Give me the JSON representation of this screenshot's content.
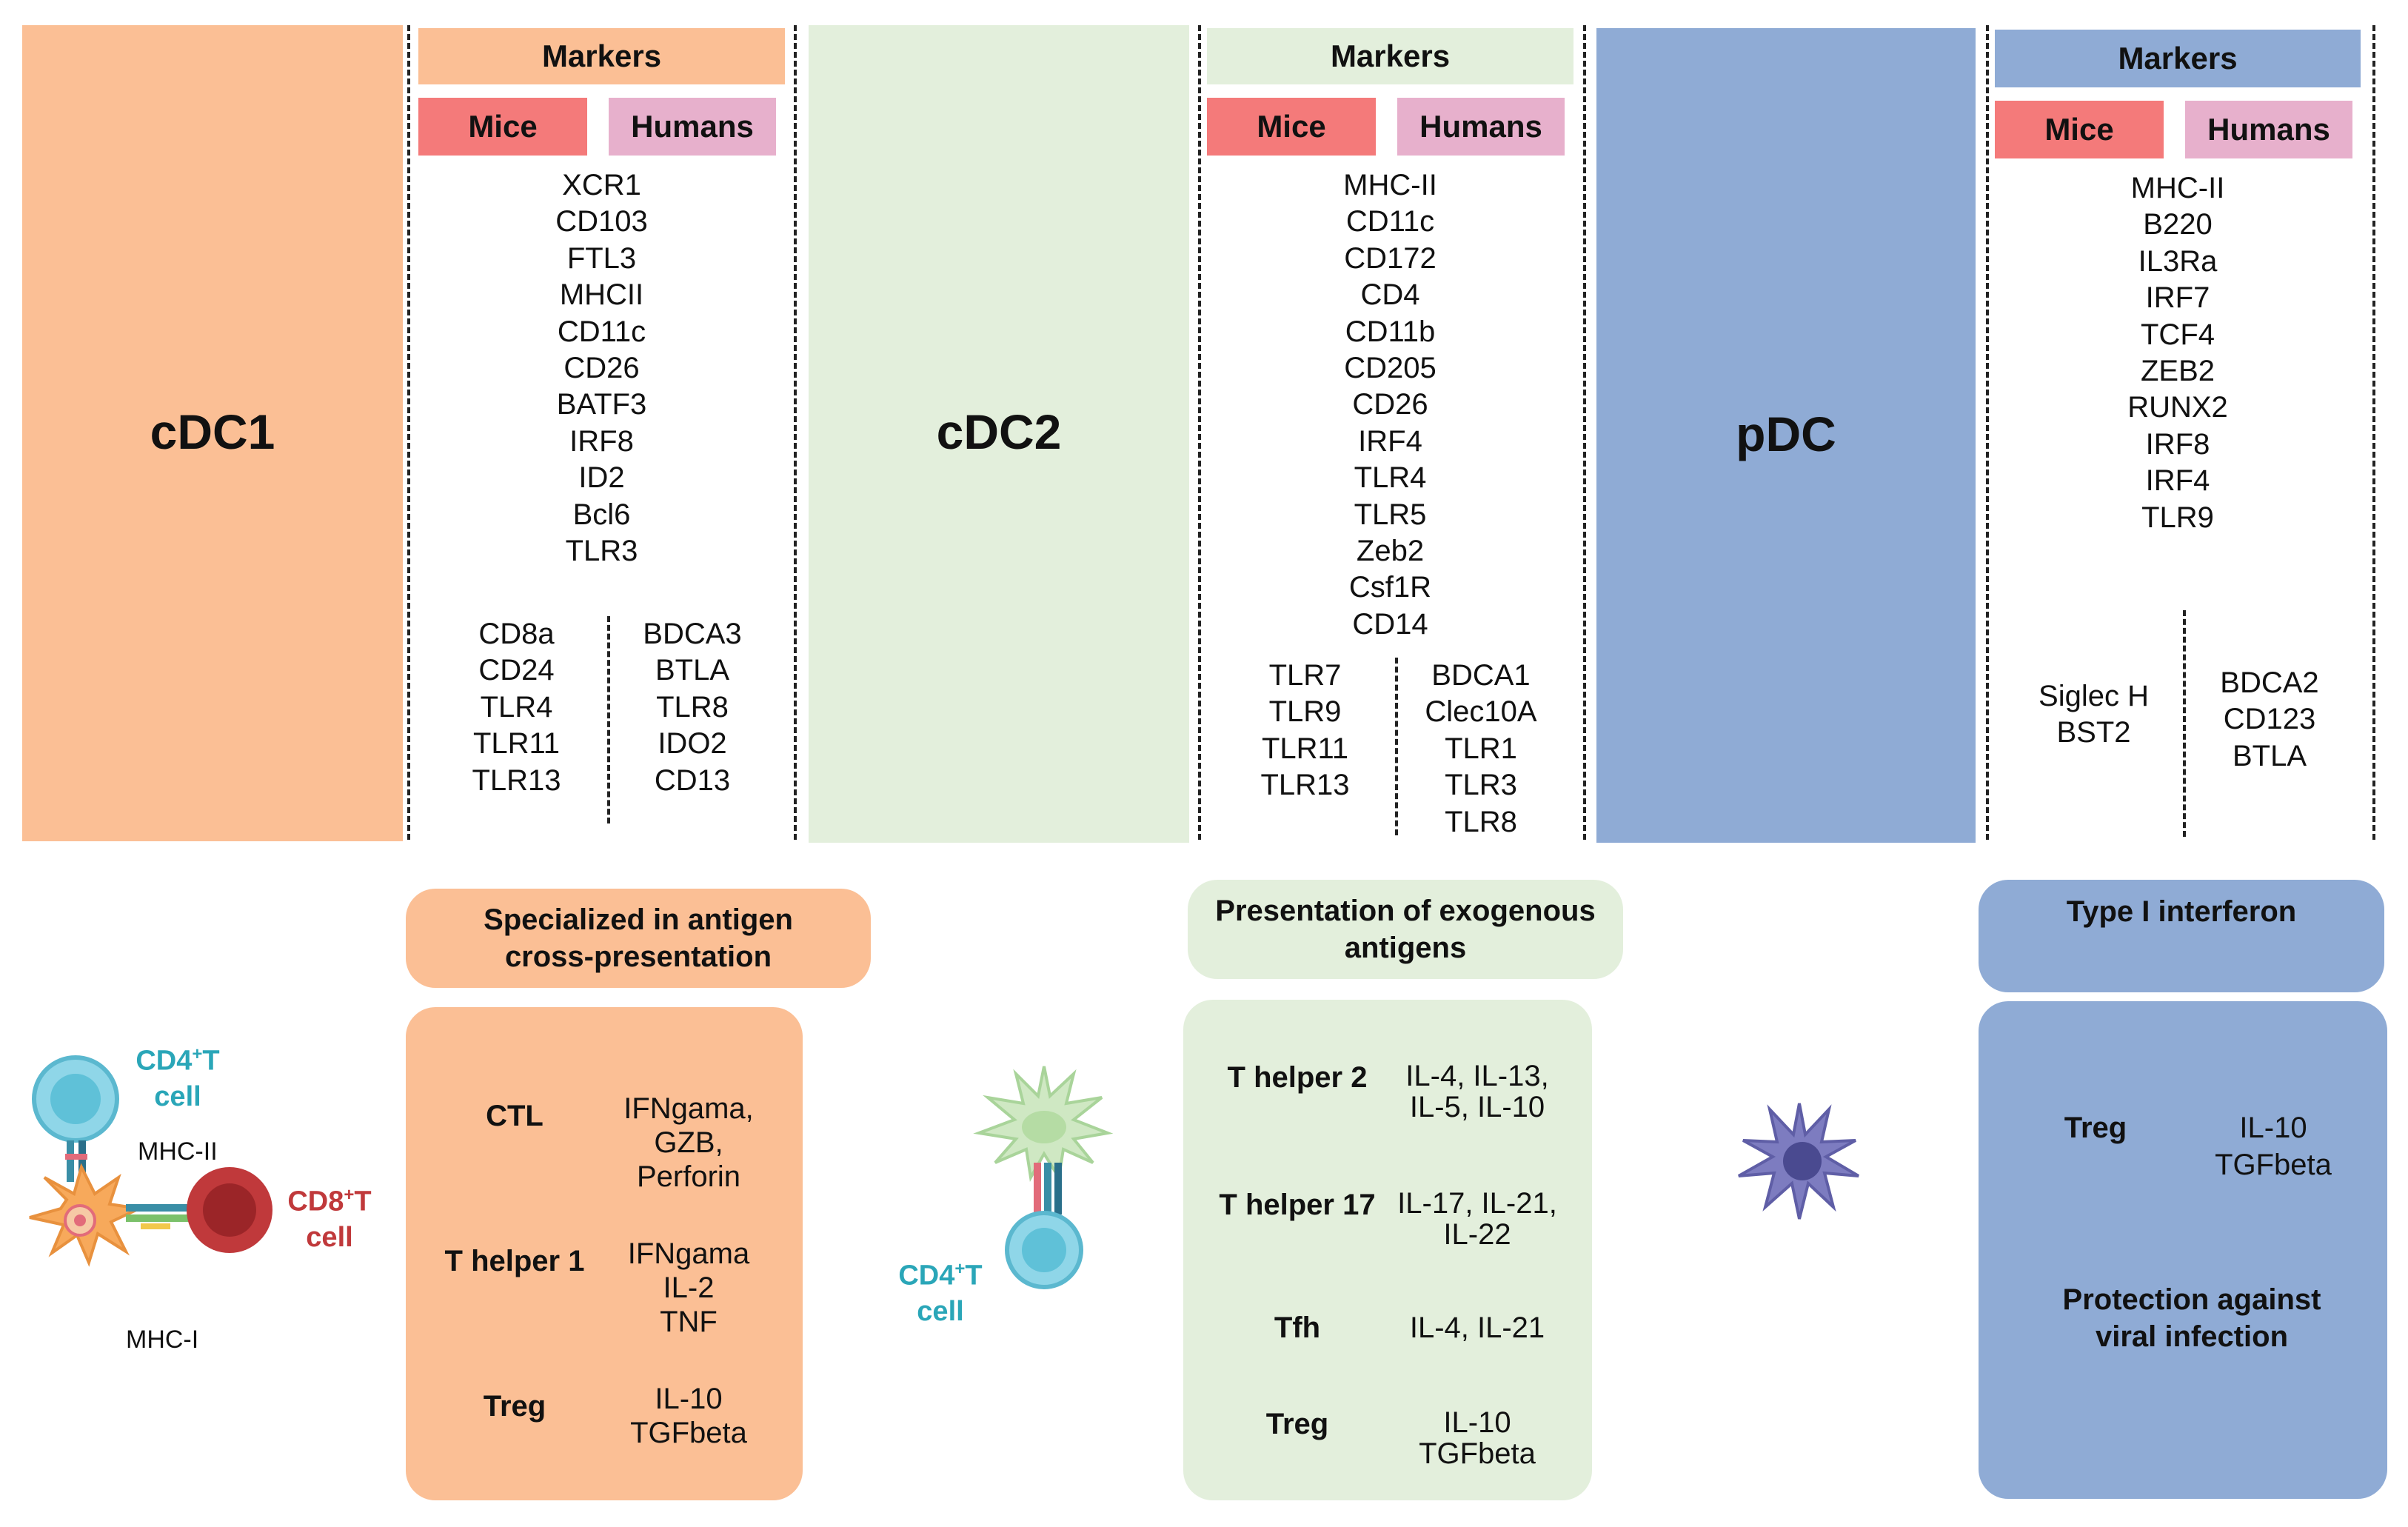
{
  "colors": {
    "cdc1": "#fbbf95",
    "cdc2": "#e3efdc",
    "pdc": "#8fabd5",
    "mice": "#f47a7a",
    "humans": "#e7b0cc",
    "teal": "#2aa6b8",
    "red": "#c0393b"
  },
  "labels": {
    "markers": "Markers",
    "mice": "Mice",
    "humans": "Humans"
  },
  "cdc1": {
    "title": "cDC1",
    "shared_markers": [
      "XCR1",
      "CD103",
      "FTL3",
      "MHCII",
      "CD11c",
      "CD26",
      "BATF3",
      "IRF8",
      "ID2",
      "Bcl6",
      "TLR3"
    ],
    "mice_markers": [
      "CD8a",
      "CD24",
      "TLR4",
      "TLR11",
      "TLR13"
    ],
    "human_markers": [
      "BDCA3",
      "BTLA",
      "TLR8",
      "IDO2",
      "CD13"
    ],
    "function": "Specialized in antigen cross-presentation",
    "functions": [
      {
        "cell": "CTL",
        "cytokines": [
          "IFNgama,",
          "GZB,",
          "Perforin"
        ]
      },
      {
        "cell": "T helper 1",
        "cytokines": [
          "IFNgama",
          "IL-2",
          "TNF"
        ]
      },
      {
        "cell": "Treg",
        "cytokines": [
          "IL-10",
          "TGFbeta"
        ]
      }
    ],
    "illustration": {
      "cd4_prefix": "CD4",
      "cd4_sup": "+",
      "cd4_suffix": "T",
      "cd4_line2": "cell",
      "mhc2": "MHC-II",
      "cd8_prefix": "CD8",
      "cd8_sup": "+",
      "cd8_suffix": "T",
      "cd8_line2": "cell",
      "mhc1": "MHC-I"
    }
  },
  "cdc2": {
    "title": "cDC2",
    "shared_markers": [
      "MHC-II",
      "CD11c",
      "CD172",
      "CD4",
      "CD11b",
      "CD205",
      "CD26",
      "IRF4",
      "TLR4",
      "TLR5",
      "Zeb2",
      "Csf1R",
      "CD14"
    ],
    "mice_markers": [
      "TLR7",
      "TLR9",
      "TLR11",
      "TLR13"
    ],
    "human_markers": [
      "BDCA1",
      "Clec10A",
      "TLR1",
      "TLR3",
      "TLR8"
    ],
    "function": "Presentation of exogenous antigens",
    "functions": [
      {
        "cell": "T helper 2",
        "cytokines": [
          "IL-4, IL-13,",
          "IL-5, IL-10"
        ]
      },
      {
        "cell": "T helper 17",
        "cytokines": [
          "IL-17, IL-21,",
          "IL-22"
        ]
      },
      {
        "cell": "Tfh",
        "cytokines": [
          "IL-4, IL-21"
        ]
      },
      {
        "cell": "Treg",
        "cytokines": [
          "IL-10",
          "TGFbeta"
        ]
      }
    ],
    "illustration": {
      "cd4_prefix": "CD4",
      "cd4_sup": "+",
      "cd4_suffix": "T",
      "cd4_line2": "cell"
    }
  },
  "pdc": {
    "title": "pDC",
    "shared_markers": [
      "MHC-II",
      "B220",
      "IL3Ra",
      "IRF7",
      "TCF4",
      "ZEB2",
      "RUNX2",
      "IRF8",
      "IRF4",
      "TLR9"
    ],
    "mice_markers": [
      "Siglec H",
      "BST2"
    ],
    "human_markers": [
      "BDCA2",
      "CD123",
      "BTLA"
    ],
    "function": "Type I interferon",
    "functions": [
      {
        "cell": "Treg",
        "cytokines": [
          "IL-10",
          "TGFbeta"
        ]
      }
    ],
    "extra": "Protection against viral infection"
  }
}
